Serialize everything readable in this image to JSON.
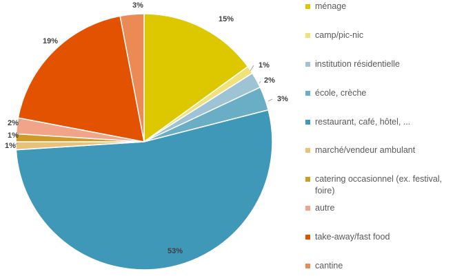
{
  "chart_data": {
    "type": "pie",
    "slices": [
      {
        "label": "ménage",
        "value": 15,
        "display": "15%",
        "color": "#DDC800"
      },
      {
        "label": "camp/pic-nic",
        "value": 1,
        "display": "1%",
        "color": "#F0E27A"
      },
      {
        "label": "institution résidentielle",
        "value": 2,
        "display": "2%",
        "color": "#9DC3D5"
      },
      {
        "label": "école, crèche",
        "value": 3,
        "display": "3%",
        "color": "#6AAEC6"
      },
      {
        "label": "restaurant, café, hôtel, ...",
        "value": 53,
        "display": "53%",
        "color": "#3F98B7"
      },
      {
        "label": "marché/vendeur ambulant",
        "value": 1,
        "display": "1%",
        "color": "#E8C27A"
      },
      {
        "label": "catering occasionnel (ex. festival, foire)",
        "value": 1,
        "display": "1%",
        "color": "#CF9A28"
      },
      {
        "label": "autre",
        "value": 2,
        "display": "2%",
        "color": "#F2A488"
      },
      {
        "label": "take-away/fast food",
        "value": 19,
        "display": "19%",
        "color": "#E35200"
      },
      {
        "label": "cantine",
        "value": 3,
        "display": "3%",
        "color": "#EC8A55"
      }
    ],
    "legend_position": "right"
  }
}
